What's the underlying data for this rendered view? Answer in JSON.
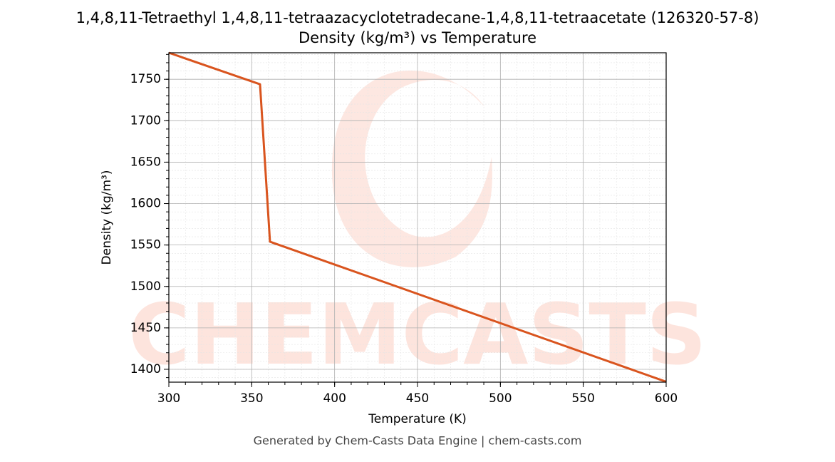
{
  "chart_data": {
    "type": "line",
    "title": "1,4,8,11-Tetraethyl 1,4,8,11-tetraazacyclotetradecane-1,4,8,11-tetraacetate (126320-57-8)",
    "subtitle": "Density (kg/m³) vs Temperature",
    "x_label": "Temperature (K)",
    "y_label": "Density (kg/m³)",
    "footer": "Generated by Chem-Casts Data Engine | chem-casts.com",
    "watermark": "CHEMCASTS",
    "x": [
      300,
      355,
      361,
      600
    ],
    "series": [
      {
        "name": "Density",
        "color": "#d9541e",
        "values": [
          1782,
          1744,
          1554,
          1385
        ]
      }
    ],
    "xlim": [
      300,
      600
    ],
    "xticks": [
      300,
      350,
      400,
      450,
      500,
      550,
      600
    ],
    "ylim": [
      1384.5,
      1782
    ],
    "yticks": [
      1400,
      1450,
      1500,
      1550,
      1600,
      1650,
      1700,
      1750
    ],
    "grid": true,
    "minor_grid": true
  }
}
